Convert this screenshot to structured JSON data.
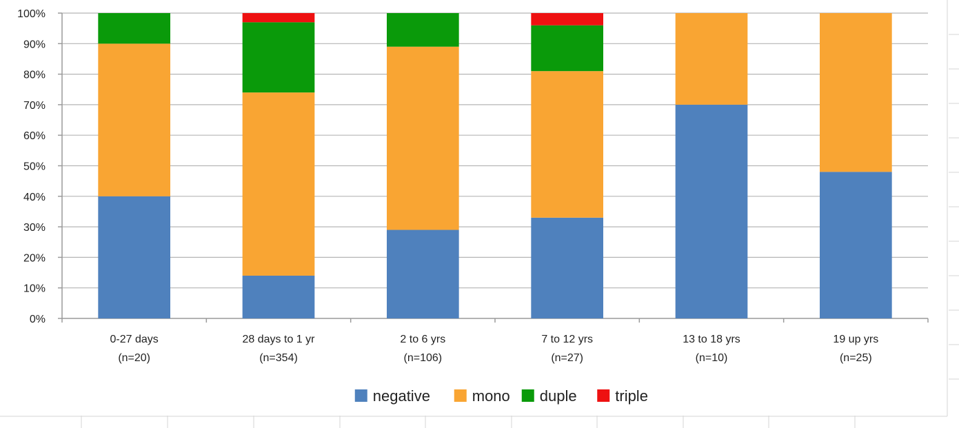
{
  "chart_data": {
    "type": "bar",
    "stacked": true,
    "categories": [
      [
        "0-27 days",
        "(n=20)"
      ],
      [
        "28 days to  1 yr",
        "(n=354)"
      ],
      [
        "2 to 6 yrs",
        "(n=106)"
      ],
      [
        "7 to 12 yrs",
        "(n=27)"
      ],
      [
        "13 to 18 yrs",
        "(n=10)"
      ],
      [
        "19 up yrs",
        "(n=25)"
      ]
    ],
    "series": [
      {
        "name": "negative",
        "color": "#4f81bd",
        "values": [
          40,
          14,
          29,
          33,
          70,
          48
        ]
      },
      {
        "name": "mono",
        "color": "#f9a533",
        "values": [
          50,
          60,
          60,
          48,
          30,
          52
        ]
      },
      {
        "name": "duple",
        "color": "#0a9a0a",
        "values": [
          10,
          23,
          11,
          15,
          0,
          0
        ]
      },
      {
        "name": "triple",
        "color": "#ee1111",
        "values": [
          0,
          3,
          0,
          4,
          0,
          0
        ]
      }
    ],
    "yticks": [
      "0%",
      "10%",
      "20%",
      "30%",
      "40%",
      "50%",
      "60%",
      "70%",
      "80%",
      "90%",
      "100%"
    ],
    "ylim": [
      0,
      100
    ],
    "grid": true,
    "legend_position": "bottom"
  }
}
